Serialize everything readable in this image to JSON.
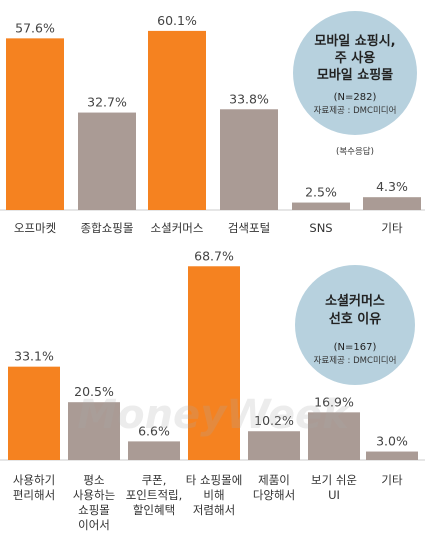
{
  "watermark": "MoneyWeek",
  "colors": {
    "orange": "#F58220",
    "gray": "#AA9B95",
    "bubble": "#B7D1DE"
  },
  "chart_data": [
    {
      "type": "bar",
      "categories": [
        "오프마켓",
        "종합쇼핑몰",
        "소셜커머스",
        "검색포털",
        "SNS",
        "기타"
      ],
      "values": [
        57.6,
        32.7,
        60.1,
        33.8,
        2.5,
        4.3
      ],
      "data_labels": [
        "57.6%",
        "32.7%",
        "60.1%",
        "33.8%",
        "2.5%",
        "4.3%"
      ],
      "highlight": [
        true,
        false,
        true,
        false,
        false,
        false
      ],
      "box": {
        "title_lines": [
          "모바일 쇼핑시,",
          "주 사용",
          "모바일 쇼핑몰"
        ],
        "n": "(N=282)",
        "source": "자료제공 : DMC미디어",
        "note": "(복수응답)"
      }
    },
    {
      "type": "bar",
      "categories": [
        [
          "사용하기",
          "편리해서"
        ],
        [
          "평소",
          "사용하는",
          "쇼핑몰",
          "이어서"
        ],
        [
          "쿠폰,",
          "포인트적립,",
          "할인혜택"
        ],
        [
          "타 쇼핑몰에",
          "비해",
          "저렴해서"
        ],
        [
          "제품이",
          "다양해서"
        ],
        [
          "보기 쉬운",
          "UI"
        ],
        [
          "기타"
        ]
      ],
      "values": [
        33.1,
        20.5,
        6.6,
        68.7,
        10.2,
        16.9,
        3.0
      ],
      "data_labels": [
        "33.1%",
        "20.5%",
        "6.6%",
        "68.7%",
        "10.2%",
        "16.9%",
        "3.0%"
      ],
      "highlight": [
        true,
        false,
        false,
        true,
        false,
        false,
        false
      ],
      "box": {
        "title_lines": [
          "소셜커머스",
          "선호 이유"
        ],
        "n": "(N=167)",
        "source": "자료제공 : DMC미디어"
      }
    }
  ]
}
